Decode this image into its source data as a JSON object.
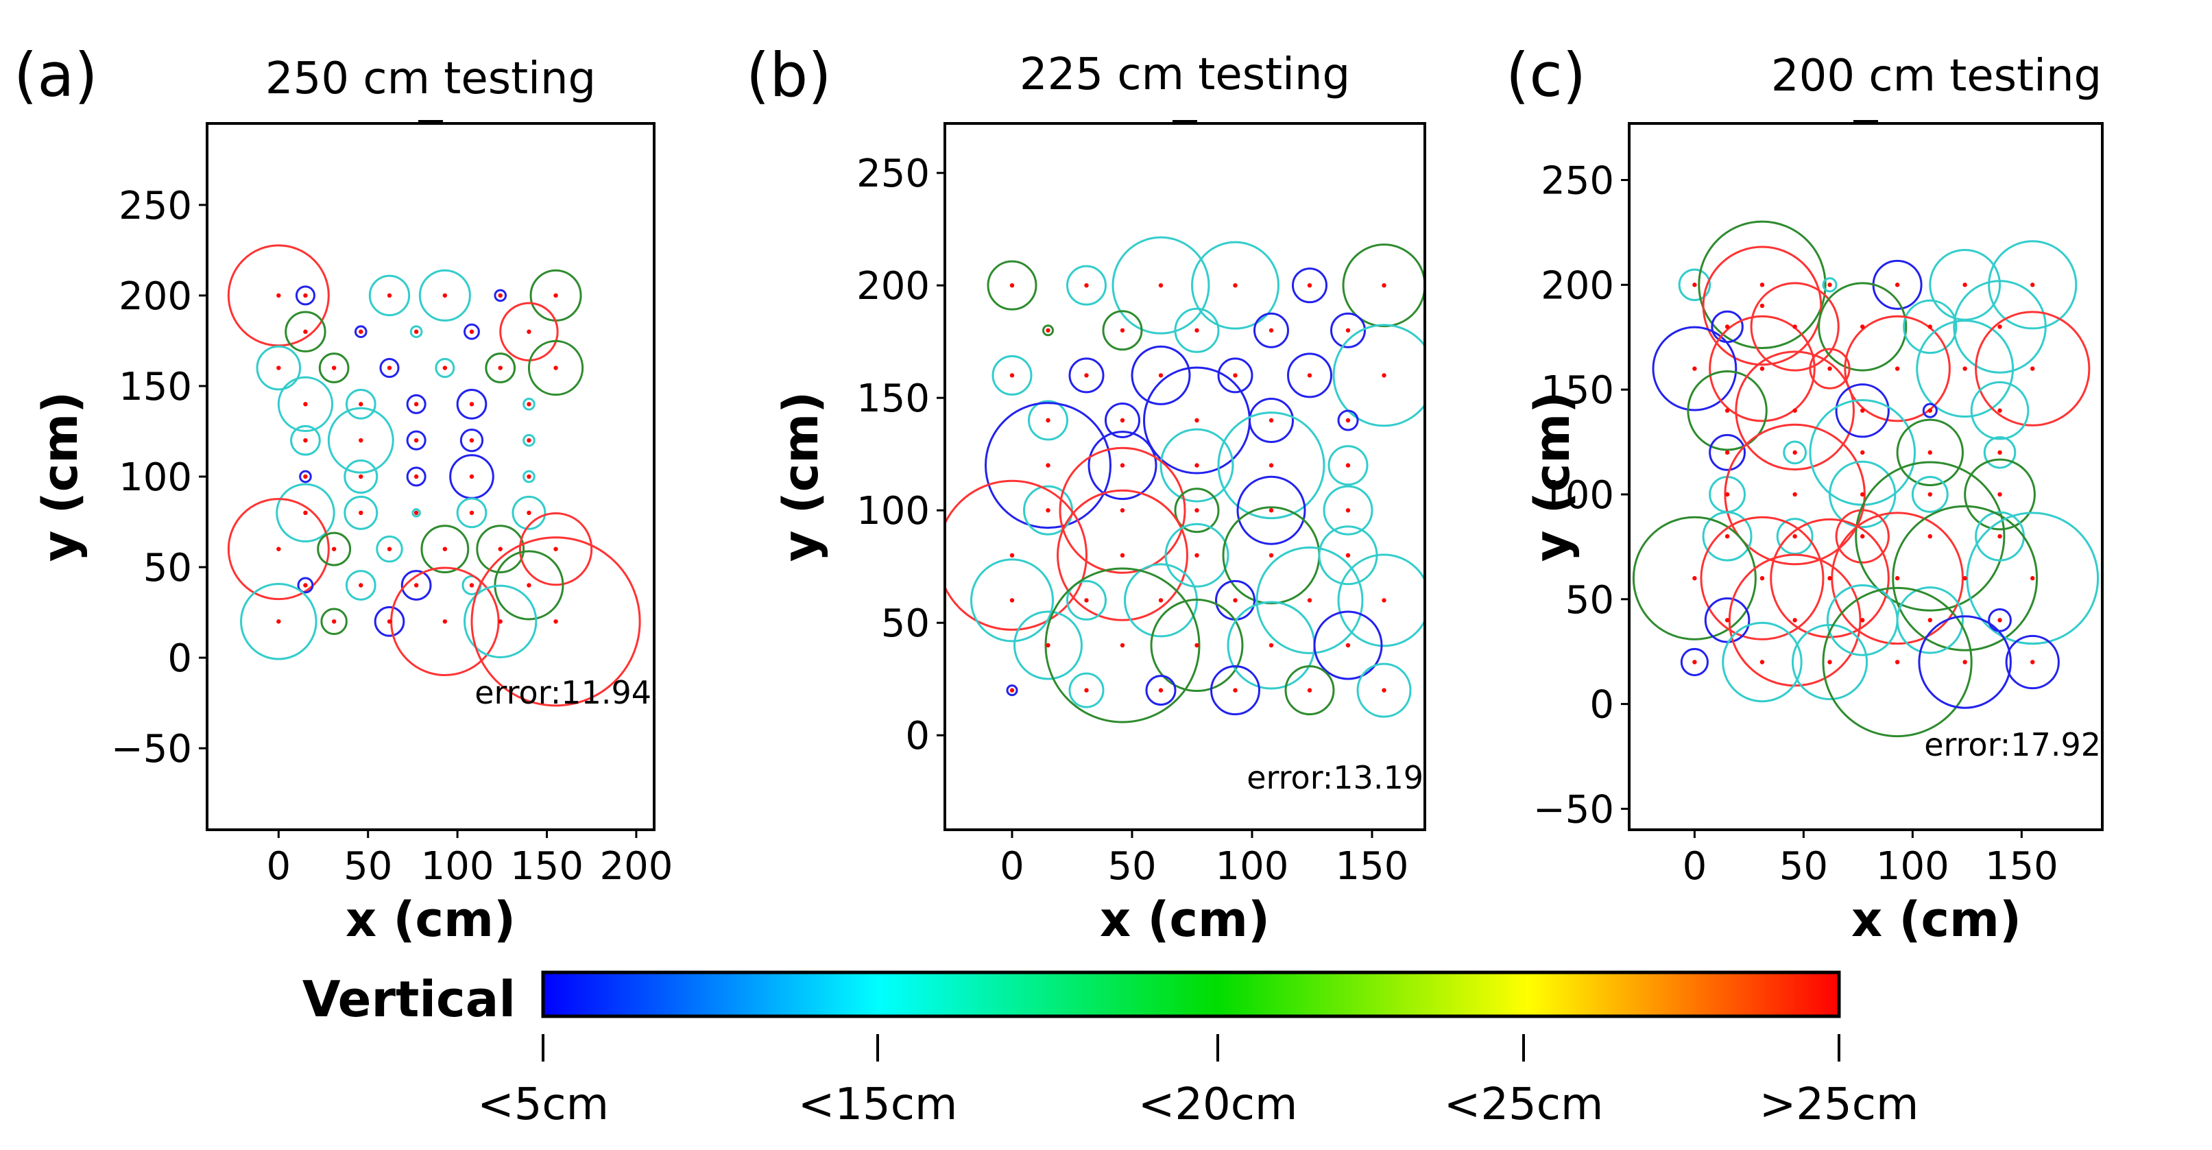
{
  "colorbar": {
    "label": "Vertical",
    "ticks": [
      "<5cm",
      "<15cm",
      "<20cm",
      "<25cm",
      ">25cm"
    ],
    "colors": [
      "#0000ff",
      "#00ffff",
      "#00dd00",
      "#ffff00",
      "#ff0000"
    ]
  },
  "series_colors": {
    "red": "#ff3333",
    "green": "#2e8b2e",
    "cyan": "#33cccc",
    "blue": "#2222ee",
    "point": "#ff0000"
  },
  "chart_data": [
    {
      "type": "scatter",
      "panel_label": "(a)",
      "title": "250 cm testing",
      "xlabel": "x (cm)",
      "ylabel": "y (cm)",
      "xlim": [
        -40,
        210
      ],
      "ylim": [
        -95,
        295
      ],
      "xticks": [
        0,
        50,
        100,
        150,
        200
      ],
      "yticks": [
        -50,
        0,
        50,
        100,
        150,
        200,
        250
      ],
      "error_label": "error:11.94",
      "points": [
        {
          "x": 0,
          "y": 200,
          "r": 28,
          "c": "red"
        },
        {
          "x": 15,
          "y": 200,
          "r": 5,
          "c": "blue"
        },
        {
          "x": 62,
          "y": 200,
          "r": 11,
          "c": "cyan"
        },
        {
          "x": 93,
          "y": 200,
          "r": 14,
          "c": "cyan"
        },
        {
          "x": 124,
          "y": 200,
          "r": 3,
          "c": "blue"
        },
        {
          "x": 155,
          "y": 200,
          "r": 14,
          "c": "green"
        },
        {
          "x": 15,
          "y": 180,
          "r": 11,
          "c": "green"
        },
        {
          "x": 46,
          "y": 180,
          "r": 3,
          "c": "blue"
        },
        {
          "x": 77,
          "y": 180,
          "r": 3,
          "c": "cyan"
        },
        {
          "x": 108,
          "y": 180,
          "r": 4,
          "c": "blue"
        },
        {
          "x": 140,
          "y": 180,
          "r": 16,
          "c": "red"
        },
        {
          "x": 0,
          "y": 160,
          "r": 12,
          "c": "cyan"
        },
        {
          "x": 31,
          "y": 160,
          "r": 8,
          "c": "green"
        },
        {
          "x": 62,
          "y": 160,
          "r": 5,
          "c": "blue"
        },
        {
          "x": 93,
          "y": 160,
          "r": 5,
          "c": "cyan"
        },
        {
          "x": 124,
          "y": 160,
          "r": 8,
          "c": "green"
        },
        {
          "x": 155,
          "y": 160,
          "r": 15,
          "c": "green"
        },
        {
          "x": 15,
          "y": 140,
          "r": 15,
          "c": "cyan"
        },
        {
          "x": 46,
          "y": 140,
          "r": 8,
          "c": "cyan"
        },
        {
          "x": 77,
          "y": 140,
          "r": 5,
          "c": "blue"
        },
        {
          "x": 108,
          "y": 140,
          "r": 8,
          "c": "blue"
        },
        {
          "x": 140,
          "y": 140,
          "r": 3,
          "c": "cyan"
        },
        {
          "x": 15,
          "y": 120,
          "r": 8,
          "c": "cyan"
        },
        {
          "x": 46,
          "y": 120,
          "r": 18,
          "c": "cyan"
        },
        {
          "x": 77,
          "y": 120,
          "r": 5,
          "c": "blue"
        },
        {
          "x": 108,
          "y": 120,
          "r": 6,
          "c": "blue"
        },
        {
          "x": 140,
          "y": 120,
          "r": 3,
          "c": "cyan"
        },
        {
          "x": 15,
          "y": 100,
          "r": 3,
          "c": "blue"
        },
        {
          "x": 46,
          "y": 100,
          "r": 9,
          "c": "cyan"
        },
        {
          "x": 77,
          "y": 100,
          "r": 5,
          "c": "blue"
        },
        {
          "x": 108,
          "y": 100,
          "r": 12,
          "c": "blue"
        },
        {
          "x": 140,
          "y": 100,
          "r": 3,
          "c": "cyan"
        },
        {
          "x": 15,
          "y": 80,
          "r": 16,
          "c": "cyan"
        },
        {
          "x": 46,
          "y": 80,
          "r": 9,
          "c": "cyan"
        },
        {
          "x": 77,
          "y": 80,
          "r": 2,
          "c": "cyan"
        },
        {
          "x": 108,
          "y": 80,
          "r": 8,
          "c": "cyan"
        },
        {
          "x": 140,
          "y": 80,
          "r": 9,
          "c": "cyan"
        },
        {
          "x": 0,
          "y": 60,
          "r": 28,
          "c": "red"
        },
        {
          "x": 31,
          "y": 60,
          "r": 9,
          "c": "green"
        },
        {
          "x": 62,
          "y": 60,
          "r": 7,
          "c": "cyan"
        },
        {
          "x": 93,
          "y": 60,
          "r": 13,
          "c": "green"
        },
        {
          "x": 124,
          "y": 60,
          "r": 13,
          "c": "green"
        },
        {
          "x": 155,
          "y": 60,
          "r": 20,
          "c": "red"
        },
        {
          "x": 15,
          "y": 40,
          "r": 4,
          "c": "blue"
        },
        {
          "x": 46,
          "y": 40,
          "r": 8,
          "c": "cyan"
        },
        {
          "x": 77,
          "y": 40,
          "r": 8,
          "c": "blue"
        },
        {
          "x": 108,
          "y": 40,
          "r": 5,
          "c": "cyan"
        },
        {
          "x": 140,
          "y": 40,
          "r": 19,
          "c": "green"
        },
        {
          "x": 0,
          "y": 20,
          "r": 21,
          "c": "cyan"
        },
        {
          "x": 31,
          "y": 20,
          "r": 7,
          "c": "green"
        },
        {
          "x": 62,
          "y": 20,
          "r": 8,
          "c": "blue"
        },
        {
          "x": 93,
          "y": 20,
          "r": 30,
          "c": "red"
        },
        {
          "x": 124,
          "y": 20,
          "r": 20,
          "c": "cyan"
        },
        {
          "x": 155,
          "y": 20,
          "r": 47,
          "c": "red"
        }
      ]
    },
    {
      "type": "scatter",
      "panel_label": "(b)",
      "title": "225 cm testing",
      "xlabel": "x (cm)",
      "ylabel": "y (cm)",
      "xlim": [
        -28,
        172
      ],
      "ylim": [
        -42,
        272
      ],
      "xticks": [
        0,
        50,
        100,
        150
      ],
      "yticks": [
        0,
        50,
        100,
        150,
        200,
        250
      ],
      "error_label": "error:13.19",
      "points": [
        {
          "x": 0,
          "y": 200,
          "r": 10,
          "c": "green"
        },
        {
          "x": 31,
          "y": 200,
          "r": 8,
          "c": "cyan"
        },
        {
          "x": 62,
          "y": 200,
          "r": 20,
          "c": "cyan"
        },
        {
          "x": 93,
          "y": 200,
          "r": 18,
          "c": "cyan"
        },
        {
          "x": 124,
          "y": 200,
          "r": 7,
          "c": "blue"
        },
        {
          "x": 155,
          "y": 200,
          "r": 17,
          "c": "green"
        },
        {
          "x": 15,
          "y": 180,
          "r": 2,
          "c": "green"
        },
        {
          "x": 46,
          "y": 180,
          "r": 8,
          "c": "green"
        },
        {
          "x": 77,
          "y": 180,
          "r": 9,
          "c": "cyan"
        },
        {
          "x": 108,
          "y": 180,
          "r": 7,
          "c": "blue"
        },
        {
          "x": 140,
          "y": 180,
          "r": 7,
          "c": "blue"
        },
        {
          "x": 0,
          "y": 160,
          "r": 8,
          "c": "cyan"
        },
        {
          "x": 31,
          "y": 160,
          "r": 7,
          "c": "blue"
        },
        {
          "x": 62,
          "y": 160,
          "r": 12,
          "c": "blue"
        },
        {
          "x": 93,
          "y": 160,
          "r": 7,
          "c": "blue"
        },
        {
          "x": 124,
          "y": 160,
          "r": 9,
          "c": "blue"
        },
        {
          "x": 155,
          "y": 160,
          "r": 21,
          "c": "cyan"
        },
        {
          "x": 15,
          "y": 140,
          "r": 8,
          "c": "cyan"
        },
        {
          "x": 46,
          "y": 140,
          "r": 7,
          "c": "blue"
        },
        {
          "x": 77,
          "y": 140,
          "r": 22,
          "c": "blue"
        },
        {
          "x": 108,
          "y": 140,
          "r": 9,
          "c": "blue"
        },
        {
          "x": 140,
          "y": 140,
          "r": 4,
          "c": "blue"
        },
        {
          "x": 15,
          "y": 120,
          "r": 26,
          "c": "blue"
        },
        {
          "x": 46,
          "y": 120,
          "r": 14,
          "c": "blue"
        },
        {
          "x": 77,
          "y": 120,
          "r": 15,
          "c": "cyan"
        },
        {
          "x": 108,
          "y": 120,
          "r": 22,
          "c": "cyan"
        },
        {
          "x": 140,
          "y": 120,
          "r": 8,
          "c": "cyan"
        },
        {
          "x": 15,
          "y": 100,
          "r": 10,
          "c": "cyan"
        },
        {
          "x": 46,
          "y": 100,
          "r": 26,
          "c": "red"
        },
        {
          "x": 77,
          "y": 100,
          "r": 9,
          "c": "green"
        },
        {
          "x": 108,
          "y": 100,
          "r": 14,
          "c": "blue"
        },
        {
          "x": 140,
          "y": 100,
          "r": 10,
          "c": "cyan"
        },
        {
          "x": 0,
          "y": 80,
          "r": 31,
          "c": "red"
        },
        {
          "x": 46,
          "y": 80,
          "r": 27,
          "c": "red"
        },
        {
          "x": 77,
          "y": 80,
          "r": 13,
          "c": "cyan"
        },
        {
          "x": 108,
          "y": 80,
          "r": 20,
          "c": "green"
        },
        {
          "x": 140,
          "y": 80,
          "r": 12,
          "c": "cyan"
        },
        {
          "x": 0,
          "y": 60,
          "r": 17,
          "c": "cyan"
        },
        {
          "x": 31,
          "y": 60,
          "r": 8,
          "c": "cyan"
        },
        {
          "x": 62,
          "y": 60,
          "r": 15,
          "c": "cyan"
        },
        {
          "x": 93,
          "y": 60,
          "r": 8,
          "c": "blue"
        },
        {
          "x": 124,
          "y": 60,
          "r": 22,
          "c": "cyan"
        },
        {
          "x": 155,
          "y": 60,
          "r": 19,
          "c": "cyan"
        },
        {
          "x": 15,
          "y": 40,
          "r": 14,
          "c": "cyan"
        },
        {
          "x": 46,
          "y": 40,
          "r": 32,
          "c": "green"
        },
        {
          "x": 77,
          "y": 40,
          "r": 19,
          "c": "green"
        },
        {
          "x": 108,
          "y": 40,
          "r": 18,
          "c": "cyan"
        },
        {
          "x": 140,
          "y": 40,
          "r": 14,
          "c": "blue"
        },
        {
          "x": 0,
          "y": 20,
          "r": 2,
          "c": "blue"
        },
        {
          "x": 31,
          "y": 20,
          "r": 7,
          "c": "cyan"
        },
        {
          "x": 62,
          "y": 20,
          "r": 6,
          "c": "blue"
        },
        {
          "x": 93,
          "y": 20,
          "r": 10,
          "c": "blue"
        },
        {
          "x": 124,
          "y": 20,
          "r": 10,
          "c": "green"
        },
        {
          "x": 155,
          "y": 20,
          "r": 11,
          "c": "cyan"
        }
      ]
    },
    {
      "type": "scatter",
      "panel_label": "(c)",
      "title": "200 cm testing",
      "xlabel": "x (cm)",
      "ylabel": "y (cm)",
      "xlim": [
        -30,
        187
      ],
      "ylim": [
        -60,
        277
      ],
      "xticks": [
        0,
        50,
        100,
        150
      ],
      "yticks": [
        -50,
        0,
        50,
        100,
        150,
        200,
        250
      ],
      "error_label": "error:17.92",
      "points": [
        {
          "x": 0,
          "y": 200,
          "r": 7,
          "c": "cyan"
        },
        {
          "x": 31,
          "y": 200,
          "r": 29,
          "c": "green"
        },
        {
          "x": 31,
          "y": 190,
          "r": 27,
          "c": "red"
        },
        {
          "x": 62,
          "y": 200,
          "r": 3,
          "c": "cyan"
        },
        {
          "x": 93,
          "y": 200,
          "r": 11,
          "c": "blue"
        },
        {
          "x": 124,
          "y": 200,
          "r": 16,
          "c": "cyan"
        },
        {
          "x": 155,
          "y": 200,
          "r": 20,
          "c": "cyan"
        },
        {
          "x": 15,
          "y": 180,
          "r": 7,
          "c": "blue"
        },
        {
          "x": 46,
          "y": 180,
          "r": 20,
          "c": "red"
        },
        {
          "x": 77,
          "y": 180,
          "r": 20,
          "c": "green"
        },
        {
          "x": 108,
          "y": 180,
          "r": 12,
          "c": "cyan"
        },
        {
          "x": 140,
          "y": 180,
          "r": 21,
          "c": "cyan"
        },
        {
          "x": 0,
          "y": 160,
          "r": 19,
          "c": "blue"
        },
        {
          "x": 31,
          "y": 160,
          "r": 24,
          "c": "red"
        },
        {
          "x": 62,
          "y": 160,
          "r": 9,
          "c": "red"
        },
        {
          "x": 93,
          "y": 160,
          "r": 24,
          "c": "red"
        },
        {
          "x": 124,
          "y": 160,
          "r": 22,
          "c": "cyan"
        },
        {
          "x": 155,
          "y": 160,
          "r": 26,
          "c": "red"
        },
        {
          "x": 15,
          "y": 140,
          "r": 18,
          "c": "green"
        },
        {
          "x": 46,
          "y": 140,
          "r": 27,
          "c": "red"
        },
        {
          "x": 77,
          "y": 140,
          "r": 12,
          "c": "blue"
        },
        {
          "x": 108,
          "y": 140,
          "r": 3,
          "c": "blue"
        },
        {
          "x": 140,
          "y": 140,
          "r": 13,
          "c": "cyan"
        },
        {
          "x": 15,
          "y": 120,
          "r": 8,
          "c": "blue"
        },
        {
          "x": 46,
          "y": 120,
          "r": 5,
          "c": "cyan"
        },
        {
          "x": 77,
          "y": 120,
          "r": 24,
          "c": "cyan"
        },
        {
          "x": 108,
          "y": 120,
          "r": 15,
          "c": "green"
        },
        {
          "x": 140,
          "y": 120,
          "r": 7,
          "c": "cyan"
        },
        {
          "x": 15,
          "y": 100,
          "r": 8,
          "c": "cyan"
        },
        {
          "x": 46,
          "y": 100,
          "r": 32,
          "c": "red"
        },
        {
          "x": 77,
          "y": 100,
          "r": 15,
          "c": "cyan"
        },
        {
          "x": 108,
          "y": 100,
          "r": 8,
          "c": "cyan"
        },
        {
          "x": 140,
          "y": 100,
          "r": 16,
          "c": "green"
        },
        {
          "x": 15,
          "y": 80,
          "r": 11,
          "c": "cyan"
        },
        {
          "x": 46,
          "y": 80,
          "r": 8,
          "c": "cyan"
        },
        {
          "x": 77,
          "y": 80,
          "r": 12,
          "c": "red"
        },
        {
          "x": 108,
          "y": 80,
          "r": 34,
          "c": "green"
        },
        {
          "x": 140,
          "y": 80,
          "r": 11,
          "c": "cyan"
        },
        {
          "x": 0,
          "y": 60,
          "r": 28,
          "c": "green"
        },
        {
          "x": 31,
          "y": 60,
          "r": 28,
          "c": "red"
        },
        {
          "x": 62,
          "y": 60,
          "r": 27,
          "c": "red"
        },
        {
          "x": 93,
          "y": 60,
          "r": 30,
          "c": "red"
        },
        {
          "x": 124,
          "y": 60,
          "r": 33,
          "c": "green"
        },
        {
          "x": 155,
          "y": 60,
          "r": 30,
          "c": "cyan"
        },
        {
          "x": 15,
          "y": 40,
          "r": 10,
          "c": "blue"
        },
        {
          "x": 46,
          "y": 40,
          "r": 30,
          "c": "red"
        },
        {
          "x": 77,
          "y": 40,
          "r": 16,
          "c": "cyan"
        },
        {
          "x": 108,
          "y": 40,
          "r": 15,
          "c": "cyan"
        },
        {
          "x": 140,
          "y": 40,
          "r": 5,
          "c": "blue"
        },
        {
          "x": 0,
          "y": 20,
          "r": 6,
          "c": "blue"
        },
        {
          "x": 31,
          "y": 20,
          "r": 18,
          "c": "cyan"
        },
        {
          "x": 62,
          "y": 20,
          "r": 17,
          "c": "cyan"
        },
        {
          "x": 93,
          "y": 20,
          "r": 34,
          "c": "green"
        },
        {
          "x": 124,
          "y": 20,
          "r": 21,
          "c": "blue"
        },
        {
          "x": 155,
          "y": 20,
          "r": 12,
          "c": "blue"
        }
      ]
    }
  ]
}
